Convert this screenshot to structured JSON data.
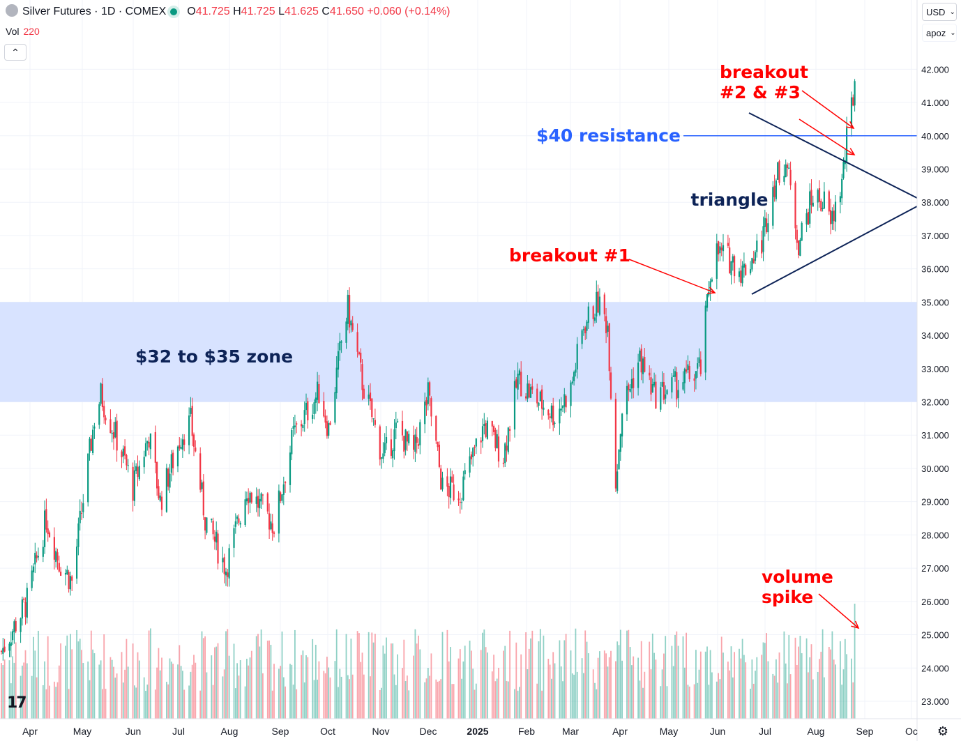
{
  "header": {
    "symbol": "Silver Futures · 1D · COMEX",
    "open_label": "O",
    "open": "41.725",
    "high_label": "H",
    "high": "41.725",
    "low_label": "L",
    "low": "41.625",
    "close_label": "C",
    "close": "41.650",
    "change": "+0.060 (+0.14%)",
    "vol_label": "Vol",
    "vol_value": "220",
    "currency": "USD",
    "unit": "apoz"
  },
  "colors": {
    "up": "#089981",
    "down": "#f23645",
    "zone": "#d6e2ff",
    "resistance": "#2962ff",
    "annotation_red": "#ff0000",
    "annotation_navy": "#0d2357",
    "triangle": "#0d2357"
  },
  "chart_data": {
    "type": "candlestick",
    "title": "Silver Futures · 1D · COMEX",
    "y_ticks": [
      "42.000",
      "41.000",
      "40.000",
      "39.000",
      "38.000",
      "37.000",
      "36.000",
      "35.000",
      "34.000",
      "33.000",
      "32.000",
      "31.000",
      "30.000",
      "29.000",
      "28.000",
      "27.000",
      "26.000",
      "25.000",
      "24.000",
      "23.000"
    ],
    "ylim": [
      22.5,
      42.5
    ],
    "x_ticks": [
      "Apr",
      "May",
      "Jun",
      "Jul",
      "Aug",
      "Sep",
      "Oct",
      "Nov",
      "Dec",
      "2025",
      "Feb",
      "Mar",
      "Apr",
      "May",
      "Jun",
      "Jul",
      "Aug",
      "Sep",
      "Oc"
    ],
    "x_range": [
      "2024-03-20",
      "2025-10-01"
    ],
    "price_anchors": [
      {
        "date": "2024-03-20",
        "price": 24.5
      },
      {
        "date": "2024-04-05",
        "price": 26.0
      },
      {
        "date": "2024-04-17",
        "price": 28.5
      },
      {
        "date": "2024-04-25",
        "price": 27.2
      },
      {
        "date": "2024-05-03",
        "price": 26.6
      },
      {
        "date": "2024-05-17",
        "price": 31.5
      },
      {
        "date": "2024-05-21",
        "price": 32.2
      },
      {
        "date": "2024-06-05",
        "price": 30.2
      },
      {
        "date": "2024-06-10",
        "price": 29.4
      },
      {
        "date": "2024-06-20",
        "price": 31.0
      },
      {
        "date": "2024-06-27",
        "price": 29.0
      },
      {
        "date": "2024-07-10",
        "price": 31.0
      },
      {
        "date": "2024-07-16",
        "price": 31.4
      },
      {
        "date": "2024-07-25",
        "price": 28.5
      },
      {
        "date": "2024-08-07",
        "price": 27.0
      },
      {
        "date": "2024-08-20",
        "price": 29.4
      },
      {
        "date": "2024-09-06",
        "price": 28.3
      },
      {
        "date": "2024-09-18",
        "price": 31.0
      },
      {
        "date": "2024-10-04",
        "price": 32.3
      },
      {
        "date": "2024-10-10",
        "price": 31.2
      },
      {
        "date": "2024-10-18",
        "price": 33.8
      },
      {
        "date": "2024-10-22",
        "price": 34.8
      },
      {
        "date": "2024-10-31",
        "price": 32.6
      },
      {
        "date": "2024-11-13",
        "price": 30.3
      },
      {
        "date": "2024-11-22",
        "price": 31.2
      },
      {
        "date": "2024-12-02",
        "price": 30.4
      },
      {
        "date": "2024-12-11",
        "price": 32.2
      },
      {
        "date": "2024-12-20",
        "price": 29.4
      },
      {
        "date": "2024-12-31",
        "price": 29.3
      },
      {
        "date": "2025-01-15",
        "price": 31.3
      },
      {
        "date": "2025-01-27",
        "price": 30.4
      },
      {
        "date": "2025-02-05",
        "price": 32.7
      },
      {
        "date": "2025-02-14",
        "price": 32.2
      },
      {
        "date": "2025-02-28",
        "price": 31.6
      },
      {
        "date": "2025-03-10",
        "price": 32.4
      },
      {
        "date": "2025-03-18",
        "price": 34.3
      },
      {
        "date": "2025-03-27",
        "price": 35.0
      },
      {
        "date": "2025-04-02",
        "price": 34.3
      },
      {
        "date": "2025-04-07",
        "price": 29.6
      },
      {
        "date": "2025-04-11",
        "price": 31.8
      },
      {
        "date": "2025-04-22",
        "price": 33.3
      },
      {
        "date": "2025-05-01",
        "price": 32.2
      },
      {
        "date": "2025-05-15",
        "price": 32.5
      },
      {
        "date": "2025-05-30",
        "price": 33.0
      },
      {
        "date": "2025-06-05",
        "price": 35.9
      },
      {
        "date": "2025-06-09",
        "price": 36.5
      },
      {
        "date": "2025-06-20",
        "price": 36.2
      },
      {
        "date": "2025-06-25",
        "price": 35.9
      },
      {
        "date": "2025-07-07",
        "price": 36.8
      },
      {
        "date": "2025-07-14",
        "price": 38.5
      },
      {
        "date": "2025-07-22",
        "price": 39.3
      },
      {
        "date": "2025-07-30",
        "price": 36.8
      },
      {
        "date": "2025-08-08",
        "price": 38.2
      },
      {
        "date": "2025-08-15",
        "price": 38.0
      },
      {
        "date": "2025-08-19",
        "price": 37.3
      },
      {
        "date": "2025-08-26",
        "price": 38.6
      },
      {
        "date": "2025-08-29",
        "price": 39.8
      },
      {
        "date": "2025-09-02",
        "price": 41.2
      },
      {
        "date": "2025-09-03",
        "price": 41.7
      }
    ],
    "volume_spike_date": "2025-09-03",
    "annotations": {
      "zone": {
        "from": 32,
        "to": 35,
        "label": "$32 to $35 zone"
      },
      "resistance": {
        "price": 40,
        "label": "$40 resistance"
      },
      "triangle_label": "triangle",
      "breakout1": "breakout #1",
      "breakout23_line1": "breakout",
      "breakout23_line2": "#2 & #3",
      "volume_line1": "volume",
      "volume_line2": "spike"
    }
  }
}
